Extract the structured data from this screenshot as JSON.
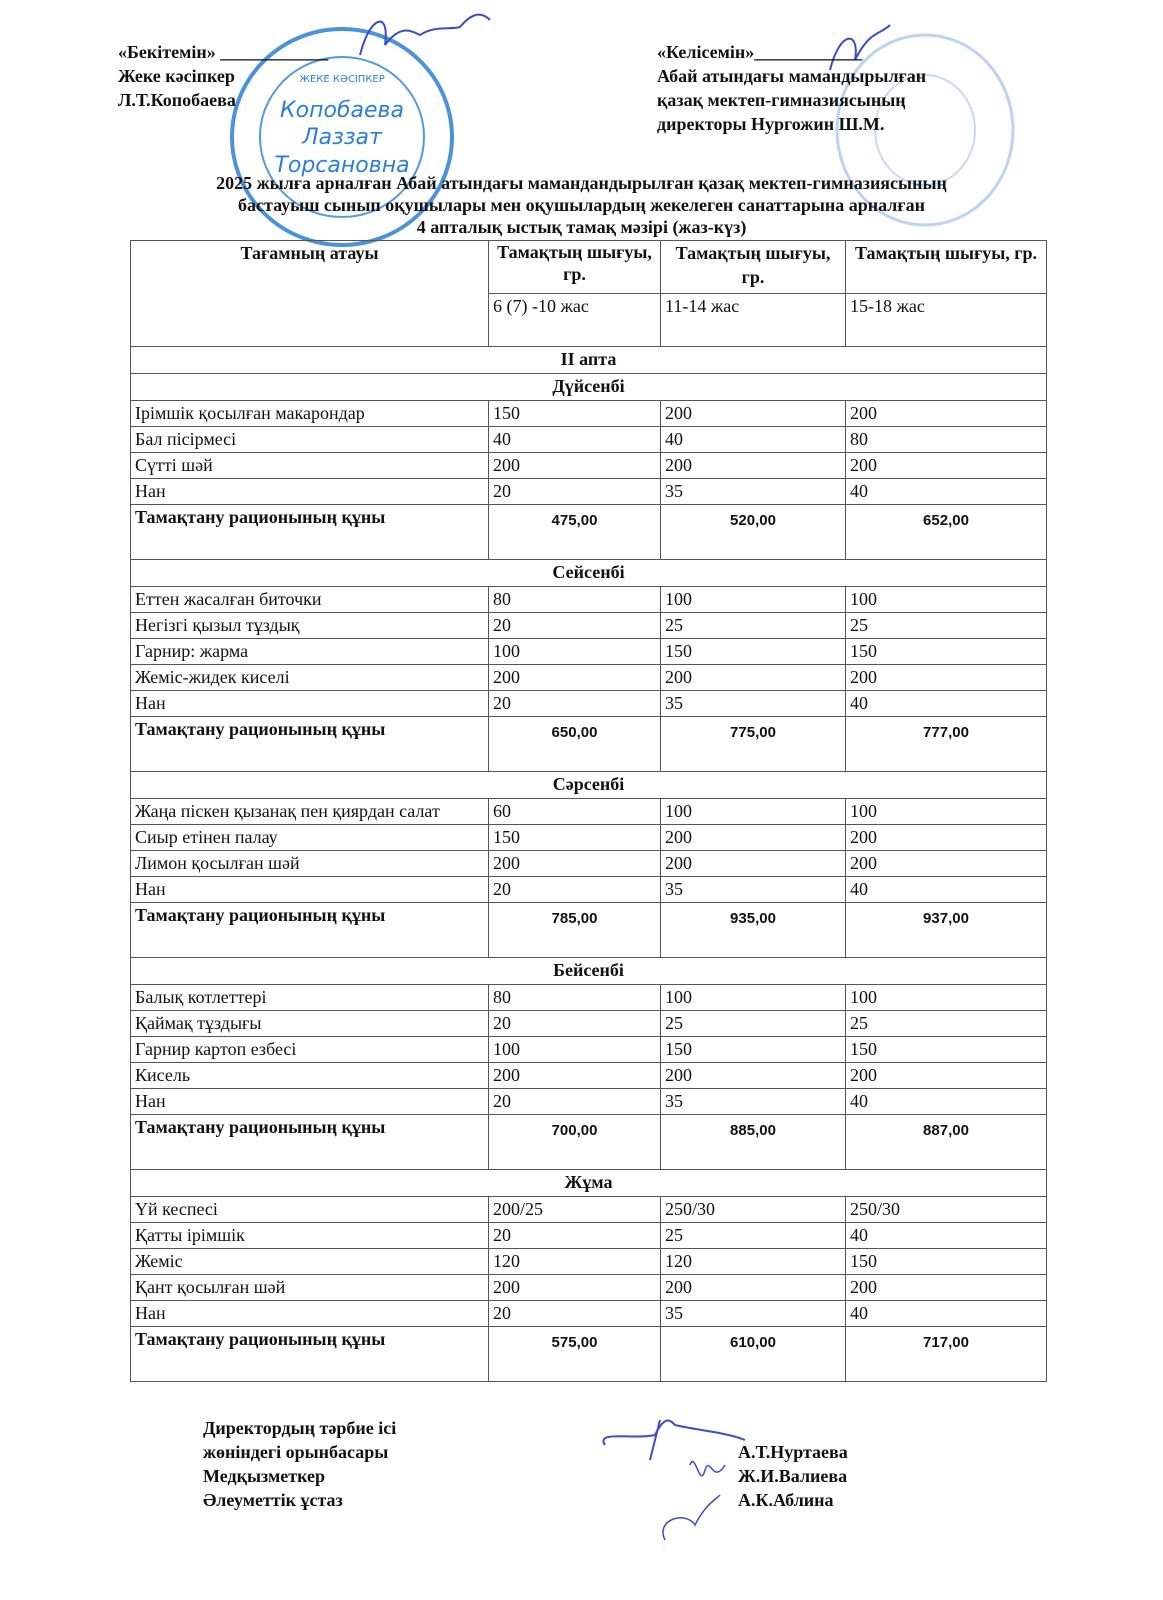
{
  "approve": {
    "label": "«Бекітемін» ____________",
    "line2": "Жеке кәсіпкер",
    "line3": "Л.Т.Копобаева"
  },
  "agree": {
    "label": "«Келісемін»____________",
    "line2": "Абай атындағы мамандырылған",
    "line3": "қазақ мектеп-гимназиясының",
    "line4": "директоры Нургожин Ш.М."
  },
  "stamp_left": {
    "text": "Копобаева Лаззат Торсановна",
    "top_text": "ЖЕКЕ КӘСІПКЕР"
  },
  "title": {
    "line1": "2025 жылға  арналған Абай атындағы мамандандырылған қазақ мектеп-гимназиясының",
    "line2": "бастауыш сынып оқушылары мен оқушылардың жекелеген санаттарына арналған",
    "line3": "4 апталық ыстық тамақ мәзірі (жаз-күз)"
  },
  "table": {
    "col_name": "Тағамның атауы",
    "col_yield": "Тамақтың шығуы, гр.",
    "ages": [
      "6 (7) -10 жас",
      "11-14 жас",
      "15-18 жас"
    ],
    "week": "II апта",
    "total_label": "Тамақтану рационының құны",
    "days": [
      {
        "name": "Дүйсенбі",
        "items": [
          [
            "Ірімшік қосылған макарондар",
            "150",
            "200",
            "200"
          ],
          [
            "Бал пісірмесі",
            "40",
            "40",
            "80"
          ],
          [
            "Сүтті шәй",
            "200",
            "200",
            "200"
          ],
          [
            "Нан",
            "20",
            "35",
            "40"
          ]
        ],
        "totals": [
          "475,00",
          "520,00",
          "652,00"
        ]
      },
      {
        "name": "Сейсенбі",
        "items": [
          [
            "Еттен жасалған биточки",
            "80",
            "100",
            "100"
          ],
          [
            "Негізгі қызыл тұздық",
            "20",
            "25",
            "25"
          ],
          [
            "Гарнир: жарма",
            "100",
            "150",
            "150"
          ],
          [
            "Жеміс-жидек киселі",
            "200",
            "200",
            "200"
          ],
          [
            "Нан",
            "20",
            "35",
            "40"
          ]
        ],
        "totals": [
          "650,00",
          "775,00",
          "777,00"
        ]
      },
      {
        "name": "Сәрсенбі",
        "items": [
          [
            "Жаңа піскен қызанақ пен қиярдан салат",
            "60",
            "100",
            "100"
          ],
          [
            "Сиыр етінен палау",
            "150",
            "200",
            "200"
          ],
          [
            "Лимон қосылған шәй",
            "200",
            "200",
            "200"
          ],
          [
            "Нан",
            "20",
            "35",
            "40"
          ]
        ],
        "totals": [
          "785,00",
          "935,00",
          "937,00"
        ]
      },
      {
        "name": "Бейсенбі",
        "items": [
          [
            "Балық котлеттері",
            "80",
            "100",
            "100"
          ],
          [
            "Қаймақ тұздығы",
            "20",
            "25",
            "25"
          ],
          [
            "Гарнир картоп езбесі",
            "100",
            "150",
            "150"
          ],
          [
            "Кисель",
            "200",
            "200",
            "200"
          ],
          [
            "Нан",
            "20",
            "35",
            "40"
          ]
        ],
        "totals": [
          "700,00",
          "885,00",
          "887,00"
        ]
      },
      {
        "name": "Жұма",
        "items": [
          [
            "Үй кеспесі",
            "200/25",
            "250/30",
            "250/30"
          ],
          [
            "Қатты ірімшік",
            "20",
            "25",
            "40"
          ],
          [
            "Жеміс",
            "120",
            "120",
            "150"
          ],
          [
            "Қант қосылған шәй",
            "200",
            "200",
            "200"
          ],
          [
            "Нан",
            "20",
            "35",
            "40"
          ]
        ],
        "totals": [
          "575,00",
          "610,00",
          "717,00"
        ]
      }
    ]
  },
  "signatures": {
    "roles": [
      "Директордың тәрбие ісі",
      "жөніндегі орынбасары",
      "Медқызметкер",
      "Әлеуметтік ұстаз"
    ],
    "names": [
      "А.Т.Нуртаева",
      "Ж.И.Валиева",
      "А.К.Аблина"
    ]
  },
  "colors": {
    "stamp": "#2b7fd6",
    "signature": "#3a4fc4"
  }
}
